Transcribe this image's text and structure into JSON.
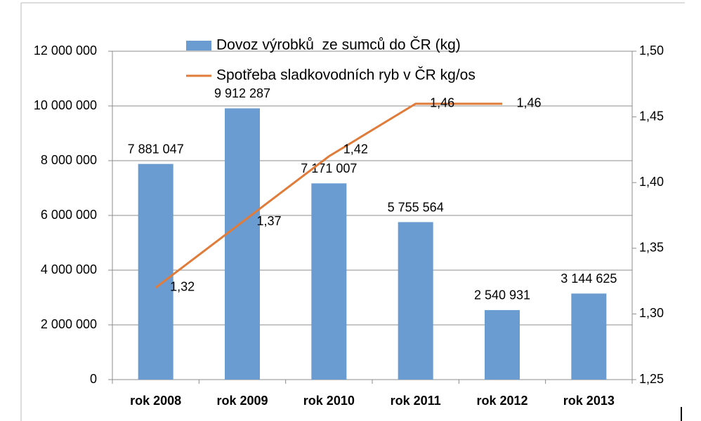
{
  "chart_data": {
    "type": "bar",
    "categories": [
      "rok 2008",
      "rok 2009",
      "rok 2010",
      "rok 2011",
      "rok 2012",
      "rok 2013"
    ],
    "series": [
      {
        "name": "Dovoz výrobků  ze sumců do ČR (kg)",
        "type": "bar",
        "color": "#6a9bd1",
        "axis": "y",
        "values": [
          7881047,
          9912287,
          7171007,
          5755564,
          2540931,
          3144625
        ],
        "value_labels": [
          "7 881 047",
          "9 912 287",
          "7 171 007",
          "5 755 564",
          "2 540 931",
          "3 144 625"
        ]
      },
      {
        "name": "Spotřeba sladkovodních ryb v ČR kg/os",
        "type": "line",
        "color": "#e07b39",
        "axis": "y2",
        "values": [
          1.32,
          1.37,
          1.42,
          1.46,
          1.46,
          null
        ],
        "value_labels": [
          "1,32",
          "1,37",
          "1,42",
          "1,46",
          "1,46",
          null
        ]
      }
    ],
    "ylim": [
      0,
      12000000
    ],
    "yticks": [
      0,
      {
        "value": 2000000,
        "label": "2 000 000"
      },
      {
        "value": 4000000,
        "label": "4 000 000"
      },
      {
        "value": 6000000,
        "label": "6 000 000"
      },
      {
        "value": 8000000,
        "label": "8 000 000"
      },
      {
        "value": 10000000,
        "label": "10 000 000"
      },
      {
        "value": 12000000,
        "label": "12 000 000"
      }
    ],
    "y2lim": [
      1.25,
      1.5
    ],
    "y2ticks": [
      {
        "value": 1.25,
        "label": "1,25"
      },
      {
        "value": 1.3,
        "label": "1,30"
      },
      {
        "value": 1.35,
        "label": "1,35"
      },
      {
        "value": 1.4,
        "label": "1,40"
      },
      {
        "value": 1.45,
        "label": "1,45"
      },
      {
        "value": 1.5,
        "label": "1,50"
      }
    ],
    "grid": true
  }
}
